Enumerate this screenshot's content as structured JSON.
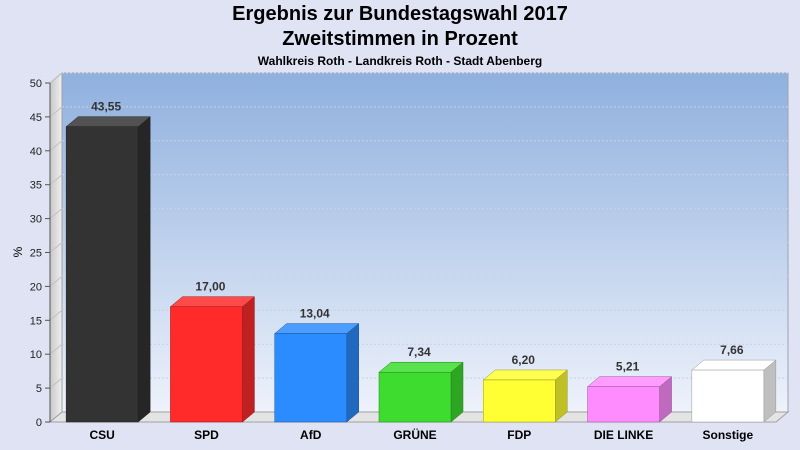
{
  "chart_data": {
    "type": "bar",
    "title": "Ergebnis zur Bundestagswahl 2017",
    "title_line2": "Zweitstimmen in Prozent",
    "subtitle": "Wahlkreis Roth - Landkreis Roth - Stadt Abenberg",
    "ylabel": "%",
    "xlabel": "",
    "ylim": [
      0,
      50
    ],
    "yticks": [
      0,
      5,
      10,
      15,
      20,
      25,
      30,
      35,
      40,
      45,
      50
    ],
    "grid": true,
    "categories": [
      "CSU",
      "SPD",
      "AfD",
      "GRÜNE",
      "FDP",
      "DIE LINKE",
      "Sonstige"
    ],
    "values": [
      43.55,
      17.0,
      13.04,
      7.34,
      6.2,
      5.21,
      7.66
    ],
    "value_labels": [
      "43,55",
      "17,00",
      "13,04",
      "7,34",
      "6,20",
      "5,21",
      "7,66"
    ],
    "colors": [
      "#333333",
      "#ff2a2a",
      "#2b8cff",
      "#3ddc2f",
      "#ffff33",
      "#ff8cff",
      "#ffffff"
    ]
  }
}
